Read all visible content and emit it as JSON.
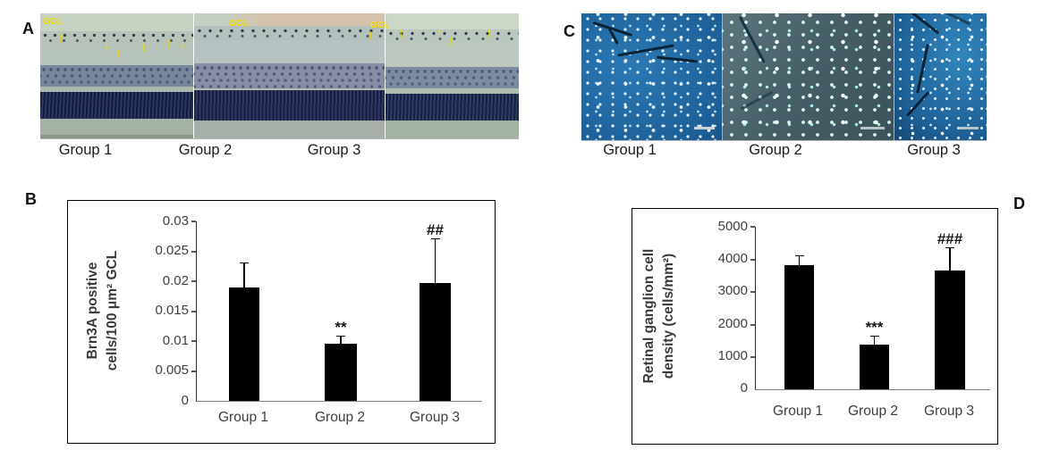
{
  "figure": {
    "panels": {
      "a": {
        "letter": "A",
        "gcl_label": "GCL",
        "arrow_glyph": "↑",
        "groups": [
          "Group 1",
          "Group 2",
          "Group 3"
        ]
      },
      "b": {
        "letter": "B"
      },
      "c": {
        "letter": "C",
        "groups": [
          "Group 1",
          "Group 2",
          "Group 3"
        ]
      },
      "d": {
        "letter": "D"
      }
    }
  },
  "chart_data": [
    {
      "panel": "B",
      "type": "bar",
      "categories": [
        "Group 1",
        "Group 2",
        "Group 3"
      ],
      "values": [
        0.019,
        0.0095,
        0.0197
      ],
      "errors_plus": [
        0.004,
        0.0012,
        0.0073
      ],
      "annotations": [
        "",
        "**",
        "##"
      ],
      "title": "",
      "xlabel": "",
      "ylabel": "Brn3A positive cells/100 μm² GCL",
      "ylabel_lines": [
        "Brn3A positive",
        "cells/100 μm² GCL"
      ],
      "ytick_labels": [
        "0",
        "0.005",
        "0.01",
        "0.015",
        "0.02",
        "0.025",
        "0.03"
      ],
      "ylim": [
        0,
        0.03
      ],
      "bar_color": "#000000",
      "grid": false,
      "legend": false
    },
    {
      "panel": "D",
      "type": "bar",
      "categories": [
        "Group 1",
        "Group 2",
        "Group 3"
      ],
      "values": [
        3830,
        1380,
        3660
      ],
      "errors_plus": [
        270,
        250,
        690
      ],
      "annotations": [
        "",
        "***",
        "###"
      ],
      "title": "",
      "xlabel": "",
      "ylabel": "Retinal ganglion cell density (cells/mm²)",
      "ylabel_lines": [
        "Retinal ganglion cell",
        "density (cells/mm²)"
      ],
      "ytick_labels": [
        "0",
        "1000",
        "2000",
        "3000",
        "4000",
        "5000"
      ],
      "ylim": [
        0,
        5000
      ],
      "bar_color": "#000000",
      "grid": false,
      "legend": false
    }
  ],
  "colors": {
    "bar": "#000000",
    "annotation_yellow": "#ffe800",
    "chart_text": "#3f3f3f",
    "histology_background": "#c6d3c3",
    "histology_dark_layer": "#202b51",
    "fluorescence_blue": "#1d5f97",
    "fluorescence_teal": "#475f68",
    "fluorescence_dots": "#e6f5ff"
  }
}
